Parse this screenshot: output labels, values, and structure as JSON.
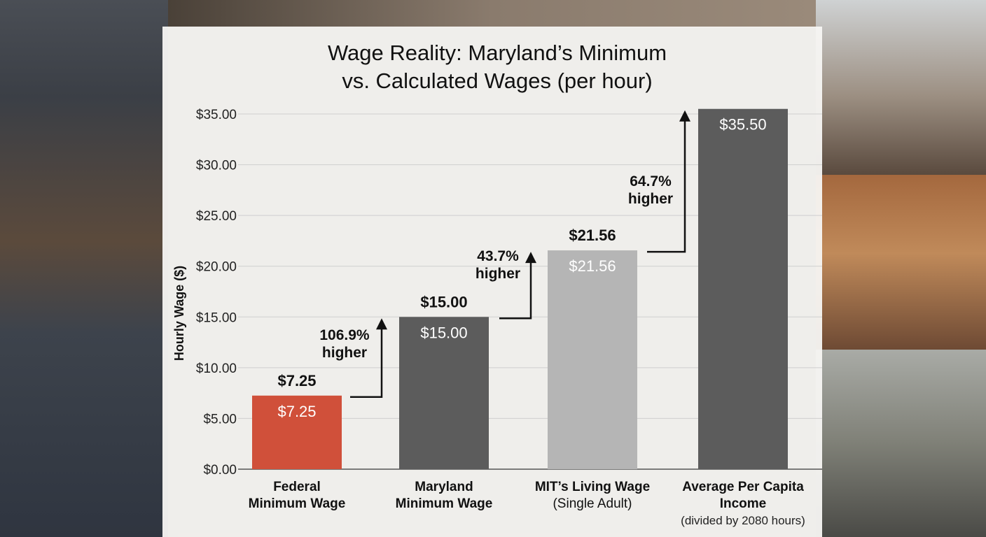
{
  "chart_data": {
    "type": "bar",
    "title_line1": "Wage Reality: Maryland’s Minimum",
    "title_line2": "vs. Calculated Wages (per hour)",
    "ylabel": "Hourly Wage ($)",
    "ylim": [
      0,
      35
    ],
    "yticks": [
      "$0.00",
      "$5.00",
      "$10.00",
      "$15.00",
      "$20.00",
      "$25.00",
      "$30.00",
      "$35.00"
    ],
    "grid": true,
    "categories": [
      {
        "line1": "Federal",
        "line2": "Minimum Wage",
        "note": ""
      },
      {
        "line1": "Maryland",
        "line2": "Minimum Wage",
        "note": ""
      },
      {
        "line1": "MIT’s Living Wage",
        "line2": "(Single Adult)",
        "note": ""
      },
      {
        "line1": "Average Per Capita",
        "line2": "Income",
        "note": "(divided by 2080 hours)"
      }
    ],
    "values": [
      7.25,
      15.0,
      21.56,
      35.5
    ],
    "value_labels": [
      "$7.25",
      "$15.00",
      "$21.56",
      "$35.50"
    ],
    "bar_colors": [
      "#d0503a",
      "#5c5c5c",
      "#b5b5b5",
      "#5c5c5c"
    ],
    "annotations": [
      {
        "line1": "106.9%",
        "line2": "higher"
      },
      {
        "line1": "43.7%",
        "line2": "higher"
      },
      {
        "line1": "64.7%",
        "line2": "higher"
      }
    ]
  }
}
